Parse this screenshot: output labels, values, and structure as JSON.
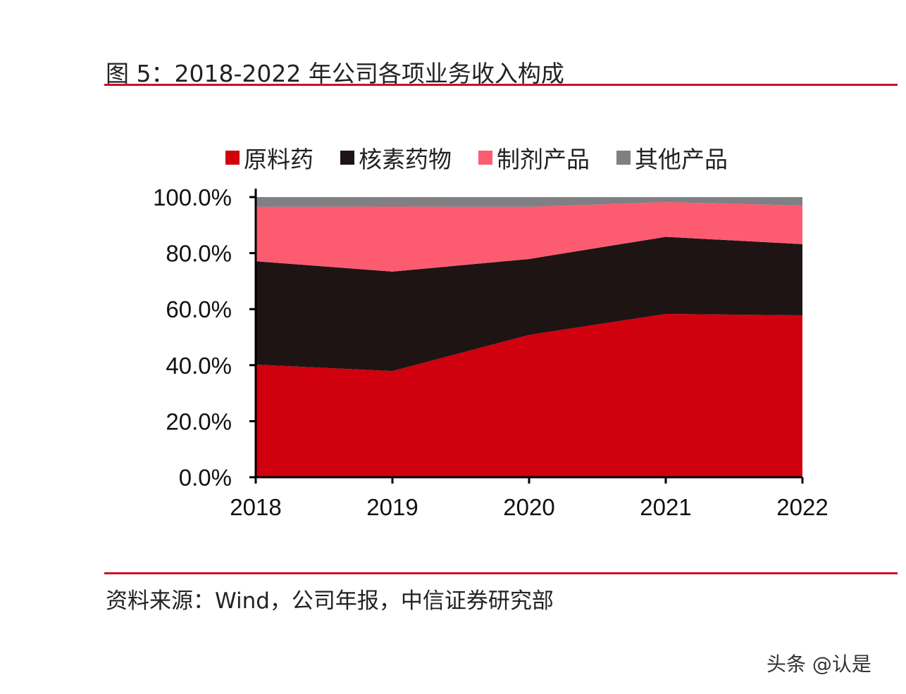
{
  "title": "图 5：2018-2022 年公司各项业务收入构成",
  "source": "资料来源：Wind，公司年报，中信证券研究部",
  "watermark": "头条 @认是",
  "chart_data": {
    "type": "area",
    "stacked": true,
    "categories": [
      "2018",
      "2019",
      "2020",
      "2021",
      "2022"
    ],
    "ylim": [
      0,
      100
    ],
    "yticks": [
      "0.0%",
      "20.0%",
      "40.0%",
      "60.0%",
      "80.0%",
      "100.0%"
    ],
    "legend_position": "top",
    "grid": false,
    "series": [
      {
        "name": "原料药",
        "color": "#d0000f",
        "values": [
          40.2,
          37.9,
          50.8,
          58.3,
          57.8
        ]
      },
      {
        "name": "核素药物",
        "color": "#1e1414",
        "values": [
          36.9,
          35.5,
          27.1,
          27.5,
          25.4
        ]
      },
      {
        "name": "制剂产品",
        "color": "#fd5c70",
        "values": [
          19.4,
          23.2,
          18.6,
          12.4,
          13.8
        ]
      },
      {
        "name": "其他产品",
        "color": "#7f7f84",
        "values": [
          3.5,
          3.4,
          3.5,
          1.8,
          3.0
        ]
      }
    ]
  }
}
